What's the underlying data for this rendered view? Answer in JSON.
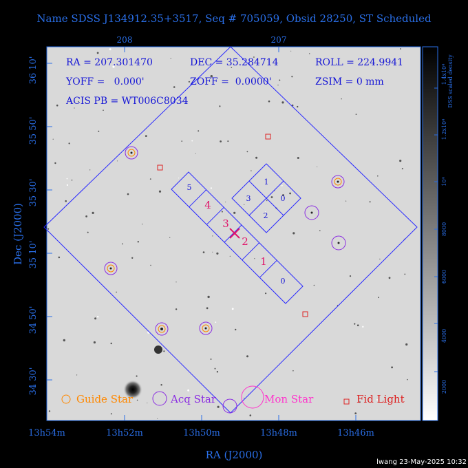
{
  "title": "Name SDSS J134912.35+3517, Seq # 705059, Obsid 28250, ST Scheduled",
  "info": {
    "ra": "RA = 207.301470",
    "dec": "DEC = 35.284714",
    "roll": "ROLL = 224.9941",
    "yoff": "YOFF =   0.000'",
    "zoff": "ZOFF =  0.0000'",
    "zsim": "ZSIM = 0 mm",
    "acis": "ACIS PB = WT006C8034"
  },
  "axes": {
    "xlabel": "RA (J2000)",
    "ylabel": "Dec (J2000)",
    "x_ticks": [
      "13h54m",
      "13h52m",
      "13h50m",
      "13h48m",
      "13h46m"
    ],
    "top_ticks": [
      "208",
      "207"
    ],
    "y_ticks": [
      "36 10'",
      "35 50'",
      "35 30'",
      "35 10'",
      "34 50'",
      "34 30'"
    ]
  },
  "colorbar": {
    "label": "DSS scaled density",
    "ticks": [
      "1.4x10⁴",
      "1.2x10⁴",
      "10⁴",
      "8000",
      "6000",
      "4000",
      "2000"
    ]
  },
  "ccd_labels_right": [
    "1",
    "3",
    "0",
    "2"
  ],
  "ccd_labels_left": [
    "5",
    "4",
    "3",
    "2",
    "1",
    "0"
  ],
  "legend": {
    "guide": "Guide Star",
    "acq": "Acq Star",
    "mon": "Mon Star",
    "fid": "Fid Light"
  },
  "colors": {
    "frame": "#2a6fe8",
    "instrument": "#2a2aff",
    "guide": "#ff8800",
    "acq": "#8a2be2",
    "mon": "#ff33cc",
    "fid": "#dd2222",
    "ccd_label_left": "#e0156a",
    "ccd_label_right": "#1515d6"
  },
  "stamp": "lwang 23-May-2025 10:32"
}
